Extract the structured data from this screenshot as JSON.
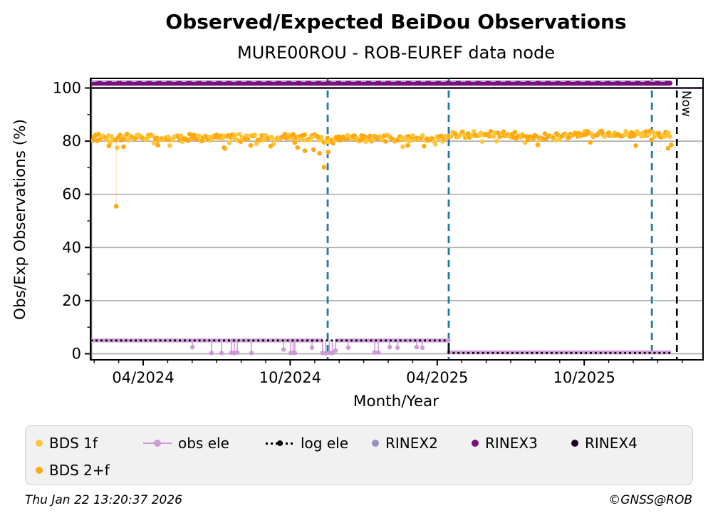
{
  "header": {
    "title": "Observed/Expected BeiDou Observations",
    "subtitle": "MURE00ROU - ROB-EUREF data node"
  },
  "footer": {
    "timestamp": "Thu Jan 22 13:20:37 2026",
    "copyright": "©GNSS@ROB"
  },
  "colors": {
    "bds_1f": "#ffc53d",
    "bds_2f": "#ffa90e",
    "obs_ele": "#cf9ad8",
    "log_ele": "#000000",
    "rinex2": "#b4a7d6",
    "rinex2_legend": "#9b8ec4",
    "rinex3": "#7b117b",
    "rinex4": "#1c0526",
    "grid": "#b0b0b0",
    "vline_blue": "#1f77b4",
    "event_green": "#108310",
    "event_red": "#e02020",
    "now_line": "#000000",
    "legend_bg": "#f1f1f1"
  },
  "legend": {
    "items": [
      {
        "label": "BDS 1f",
        "color_key": "bds_1f",
        "marker": "dot"
      },
      {
        "label": "obs ele",
        "color_key": "obs_ele",
        "marker": "line-dot"
      },
      {
        "label": "log ele",
        "color_key": "log_ele",
        "marker": "dotted-line-dot"
      },
      {
        "label": "RINEX2",
        "color_key": "rinex2_legend",
        "marker": "dot"
      },
      {
        "label": "RINEX3",
        "color_key": "rinex3",
        "marker": "dot"
      },
      {
        "label": "RINEX4",
        "color_key": "rinex4",
        "marker": "dot"
      },
      {
        "label": "BDS 2+f",
        "color_key": "bds_2f",
        "marker": "dot"
      }
    ]
  },
  "chart_data": {
    "type": "line+scatter",
    "title": "Observed/Expected BeiDou Observations",
    "subtitle": "MURE00ROU - ROB-EUREF data node",
    "xlabel": "Month/Year",
    "ylabel": "Obs/Exp Observations (%)",
    "now_label": "Now",
    "x_unit": "months since 2024-01-01",
    "xlim_months": [
      0.85,
      25.85
    ],
    "ylim": [
      -2.3,
      103.6
    ],
    "grid": "horizontal-only",
    "x_axis": {
      "major": [
        {
          "t": 3,
          "label": "04/2024"
        },
        {
          "t": 9,
          "label": "10/2024"
        },
        {
          "t": 15,
          "label": "04/2025"
        },
        {
          "t": 21,
          "label": "10/2025"
        }
      ],
      "minor": [
        1,
        2,
        4,
        5,
        6,
        7,
        8,
        10,
        11,
        12,
        13,
        14,
        16,
        17,
        18,
        19,
        20,
        22,
        23,
        24,
        25
      ]
    },
    "y_axis": {
      "major": [
        {
          "v": 0,
          "label": "0"
        },
        {
          "v": 20,
          "label": "20"
        },
        {
          "v": 40,
          "label": "40"
        },
        {
          "v": 60,
          "label": "60"
        },
        {
          "v": 80,
          "label": "80"
        },
        {
          "v": 100,
          "label": "100"
        }
      ],
      "minor": [
        10,
        30,
        50,
        70,
        90
      ]
    },
    "vlines": [
      {
        "t": 0.87,
        "type": "event",
        "desc": "station event at data start (green solid + red dashed)"
      },
      {
        "t": 10.53,
        "type": "blue",
        "desc": "mid Nov 2024"
      },
      {
        "t": 15.47,
        "type": "blue",
        "desc": "mid Apr 2025"
      },
      {
        "t": 23.76,
        "type": "blue",
        "desc": "late Dec 2025"
      },
      {
        "t": 24.78,
        "type": "now",
        "desc": "Now marker (Jan 22 2026)"
      }
    ],
    "series": {
      "rinex2": {
        "t1": 0.9,
        "t2": 24.5,
        "y": 102.6,
        "style": "dashed"
      },
      "rinex3": {
        "t1": 0.9,
        "t2": 24.5,
        "y": 101.8,
        "style": "thick-solid"
      },
      "rinex4": {
        "t1": 0.849,
        "t2": 25.85,
        "y": 100.0,
        "style": "solid"
      },
      "obs_ele": {
        "segments": [
          {
            "t1": 0.9,
            "t2": 10.28,
            "y": 5.0
          },
          {
            "t1": 10.9,
            "t2": 15.47,
            "y": 5.0
          },
          {
            "t1": 15.47,
            "t2": 24.5,
            "y": 0.55
          }
        ],
        "dips": [
          [
            5.01,
            2.5
          ],
          [
            5.79,
            0.3
          ],
          [
            6.2,
            0.3
          ],
          [
            6.6,
            0.4
          ],
          [
            6.72,
            0.3
          ],
          [
            6.84,
            0.5
          ],
          [
            7.42,
            0.3
          ],
          [
            8.73,
            1.6
          ],
          [
            9.02,
            0.3
          ],
          [
            9.12,
            0.4
          ],
          [
            9.19,
            0.3
          ],
          [
            9.89,
            2.3
          ],
          [
            10.32,
            0.3
          ],
          [
            10.45,
            0.2
          ],
          [
            10.6,
            0.4
          ],
          [
            10.72,
            0.3
          ],
          [
            10.85,
            1.2
          ],
          [
            11.37,
            2.3
          ],
          [
            12.45,
            0.5
          ],
          [
            12.6,
            0.5
          ],
          [
            13.06,
            2.5
          ],
          [
            13.38,
            2.3
          ],
          [
            14.16,
            2.5
          ],
          [
            14.4,
            2.3
          ]
        ]
      },
      "log_ele": {
        "drop_t": 15.47,
        "segments": [
          {
            "t1": 0.9,
            "t2": 15.47,
            "y": 5.0
          },
          {
            "t1": 15.47,
            "t2": 24.5,
            "y": 0.3
          }
        ]
      }
    },
    "scatter_band": {
      "desc": "BDS 1f and BDS 2+f daily obs/expected ratios, dense band ~78-85%",
      "seed": 123457,
      "t_start": 0.95,
      "t_end": 24.5,
      "t_step": 0.058,
      "jitter": 1.25,
      "low_tail_prob": 0.055,
      "low_tail_base": 1.2,
      "low_tail_extra": 2.3,
      "point_radius": 3.3,
      "base_segments": [
        [
          0.85,
          10.3,
          81.4
        ],
        [
          10.3,
          10.95,
          80.4
        ],
        [
          10.95,
          15.5,
          81.1
        ],
        [
          15.5,
          18.2,
          82.5
        ],
        [
          18.2,
          20.6,
          81.7
        ],
        [
          20.6,
          25.0,
          82.7
        ]
      ],
      "outliers": [
        {
          "t": 1.9,
          "y": 55.5,
          "stem": true
        },
        {
          "t": 1.6,
          "y": 78.2
        },
        {
          "t": 2.2,
          "y": 77.9
        },
        {
          "t": 3.6,
          "y": 78.5
        },
        {
          "t": 6.3,
          "y": 77.6
        },
        {
          "t": 8.2,
          "y": 78.1
        },
        {
          "t": 9.3,
          "y": 77.6
        },
        {
          "t": 9.6,
          "y": 76.4
        },
        {
          "t": 9.95,
          "y": 76.8
        },
        {
          "t": 10.2,
          "y": 75.4
        },
        {
          "t": 10.38,
          "y": 70.2,
          "stem": true
        },
        {
          "t": 10.55,
          "y": 75.9
        },
        {
          "t": 13.8,
          "y": 78.4
        },
        {
          "t": 23.1,
          "y": 78.3
        },
        {
          "t": 24.42,
          "y": 77.3
        },
        {
          "t": 24.55,
          "y": 78.6
        }
      ]
    }
  }
}
